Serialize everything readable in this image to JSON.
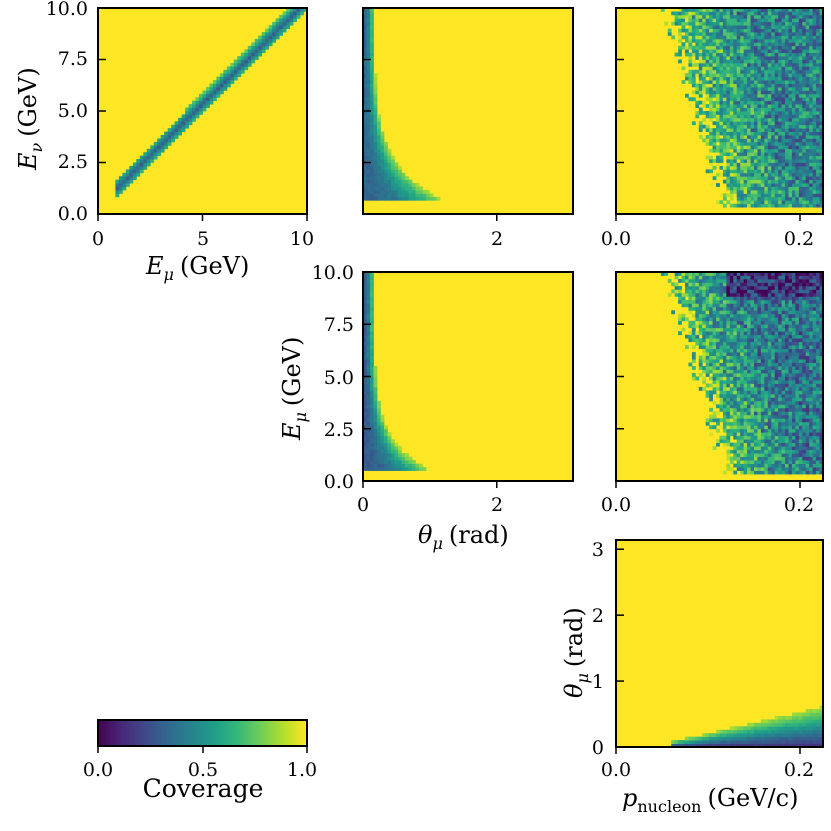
{
  "figure": {
    "colors": {
      "viridis_stops": [
        "#440154",
        "#482878",
        "#3e4989",
        "#31688e",
        "#26828e",
        "#1f9e89",
        "#35b779",
        "#6ece58",
        "#b5de2b",
        "#fde725"
      ],
      "frame": "#000000"
    }
  },
  "labels": {
    "e_nu": "E",
    "e_nu_sub": "ν",
    "e_mu": "E",
    "e_mu_sub": "μ",
    "gev_unit": "(GeV)",
    "theta": "θ",
    "theta_sub": "μ",
    "rad_unit": "(rad)",
    "p": "p",
    "p_sub": "nucleon",
    "gevc_unit": "(GeV/c)"
  },
  "colorbar": {
    "label": "Coverage",
    "ticks": [
      "0.0",
      "0.5",
      "1.0"
    ],
    "range": [
      0,
      1
    ],
    "colormap": "viridis"
  },
  "chart_data": [
    {
      "id": "enu_vs_emu",
      "type": "heatmap",
      "x_range": [
        0,
        10
      ],
      "y_range": [
        0,
        10
      ],
      "x_ticks": [
        {
          "v": 0,
          "t": "0"
        },
        {
          "v": 5,
          "t": "5"
        },
        {
          "v": 10,
          "t": "10"
        }
      ],
      "y_ticks": [
        {
          "v": 0,
          "t": "0.0"
        },
        {
          "v": 2.5,
          "t": "2.5"
        },
        {
          "v": 5,
          "t": "5.0"
        },
        {
          "v": 7.5,
          "t": "7.5"
        },
        {
          "v": 10,
          "t": "10.0"
        }
      ],
      "xlabel": "E_μ (GeV)",
      "ylabel": "E_ν (GeV)",
      "background_coverage": 1.0,
      "feature": "diagonal band (E_ν slightly above E_μ) with coverage ~0.3–0.6, from E≈0.8 to 10 GeV"
    },
    {
      "id": "enu_vs_theta",
      "type": "heatmap",
      "x_range": [
        0,
        3.14
      ],
      "y_range": [
        0,
        10
      ],
      "x_ticks": [
        {
          "v": 2,
          "t": "2"
        }
      ],
      "y_ticks": [
        {
          "v": 0,
          "t": ""
        },
        {
          "v": 2.5,
          "t": ""
        },
        {
          "v": 5,
          "t": ""
        },
        {
          "v": 7.5,
          "t": ""
        },
        {
          "v": 10,
          "t": ""
        }
      ],
      "background_coverage": 1.0,
      "feature": "low coverage (~0.3–0.5) at small θ_μ (< 0.2 rad), widening toward θ≈1 rad at low E_ν"
    },
    {
      "id": "enu_vs_p",
      "type": "heatmap",
      "x_range": [
        0,
        0.225
      ],
      "y_range": [
        0,
        10
      ],
      "x_ticks": [
        {
          "v": 0,
          "t": "0.0"
        },
        {
          "v": 0.2,
          "t": "0.2"
        }
      ],
      "y_ticks": [
        {
          "v": 0,
          "t": ""
        },
        {
          "v": 2.5,
          "t": ""
        },
        {
          "v": 5,
          "t": ""
        },
        {
          "v": 7.5,
          "t": ""
        },
        {
          "v": 10,
          "t": ""
        }
      ],
      "background_coverage": 1.0,
      "feature": "noisy region of coverage ~0.4–0.7 for p_nucleon above ~0.06–0.12 GeV/c, larger at high E_ν"
    },
    {
      "id": "emu_vs_theta",
      "type": "heatmap",
      "x_range": [
        0,
        3.14
      ],
      "y_range": [
        0,
        10
      ],
      "x_ticks": [
        {
          "v": 0,
          "t": "0"
        },
        {
          "v": 2,
          "t": "2"
        }
      ],
      "y_ticks": [
        {
          "v": 0,
          "t": "0.0"
        },
        {
          "v": 2.5,
          "t": "2.5"
        },
        {
          "v": 5,
          "t": "5.0"
        },
        {
          "v": 7.5,
          "t": "7.5"
        },
        {
          "v": 10,
          "t": "10.0"
        }
      ],
      "xlabel": "θ_μ (rad)",
      "ylabel": "E_μ (GeV)",
      "background_coverage": 1.0,
      "feature": "low coverage (~0.25–0.5) at θ_μ < 0.2 rad, curving out to θ≈0.9 rad at low E_μ"
    },
    {
      "id": "emu_vs_p",
      "type": "heatmap",
      "x_range": [
        0,
        0.225
      ],
      "y_range": [
        0,
        10
      ],
      "x_ticks": [
        {
          "v": 0,
          "t": "0.0"
        },
        {
          "v": 0.2,
          "t": "0.2"
        }
      ],
      "y_ticks": [
        {
          "v": 0,
          "t": ""
        },
        {
          "v": 2.5,
          "t": ""
        },
        {
          "v": 5,
          "t": ""
        },
        {
          "v": 7.5,
          "t": ""
        },
        {
          "v": 10,
          "t": ""
        }
      ],
      "background_coverage": 1.0,
      "feature": "noisy coverage ~0.3–0.7, dropping to ~0.1 near E_μ≈9–10 GeV and p>0.12 GeV/c"
    },
    {
      "id": "theta_vs_p",
      "type": "heatmap",
      "x_range": [
        0,
        0.225
      ],
      "y_range": [
        0,
        3.14
      ],
      "x_ticks": [
        {
          "v": 0,
          "t": "0.0"
        },
        {
          "v": 0.2,
          "t": "0.2"
        }
      ],
      "y_ticks": [
        {
          "v": 0,
          "t": "0"
        },
        {
          "v": 1,
          "t": "1"
        },
        {
          "v": 2,
          "t": "2"
        },
        {
          "v": 3,
          "t": "3"
        }
      ],
      "xlabel": "p_nucleon (GeV/c)",
      "ylabel": "θ_μ (rad)",
      "background_coverage": 1.0,
      "feature": "low coverage (~0.1–0.4) at θ_μ < 0.2 rad for p_nucleon > 0.06 GeV/c, fading upward to ~0.8 near θ≈0.5"
    }
  ]
}
